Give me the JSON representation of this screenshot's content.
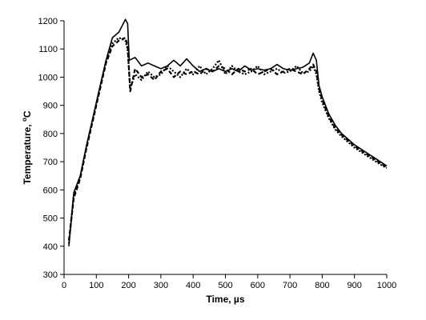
{
  "chart_data": {
    "type": "line",
    "title": "",
    "xlabel": "Time, µs",
    "ylabel_main": "Temperature, ",
    "ylabel_degree": "o",
    "ylabel_unit": "C",
    "xlim": [
      0,
      1000
    ],
    "ylim": [
      300,
      1200
    ],
    "xticks": [
      "0",
      "100",
      "200",
      "300",
      "400",
      "500",
      "600",
      "700",
      "800",
      "900",
      "1000"
    ],
    "yticks": [
      "300",
      "400",
      "500",
      "600",
      "700",
      "800",
      "900",
      "1000",
      "1100",
      "1200"
    ],
    "grid": false,
    "legend": "none",
    "series": [
      {
        "style": "solid",
        "color": "#000000",
        "points": [
          [
            15,
            400
          ],
          [
            30,
            590
          ],
          [
            50,
            650
          ],
          [
            70,
            760
          ],
          [
            90,
            860
          ],
          [
            110,
            960
          ],
          [
            130,
            1060
          ],
          [
            150,
            1140
          ],
          [
            170,
            1160
          ],
          [
            190,
            1205
          ],
          [
            197,
            1190
          ],
          [
            202,
            1060
          ],
          [
            220,
            1070
          ],
          [
            240,
            1040
          ],
          [
            260,
            1050
          ],
          [
            280,
            1040
          ],
          [
            300,
            1030
          ],
          [
            320,
            1040
          ],
          [
            340,
            1060
          ],
          [
            360,
            1040
          ],
          [
            380,
            1065
          ],
          [
            400,
            1040
          ],
          [
            420,
            1020
          ],
          [
            440,
            1030
          ],
          [
            460,
            1020
          ],
          [
            480,
            1030
          ],
          [
            500,
            1020
          ],
          [
            520,
            1030
          ],
          [
            540,
            1020
          ],
          [
            560,
            1040
          ],
          [
            580,
            1025
          ],
          [
            600,
            1030
          ],
          [
            620,
            1025
          ],
          [
            640,
            1030
          ],
          [
            660,
            1045
          ],
          [
            680,
            1030
          ],
          [
            700,
            1025
          ],
          [
            720,
            1030
          ],
          [
            740,
            1035
          ],
          [
            760,
            1050
          ],
          [
            772,
            1085
          ],
          [
            782,
            1060
          ],
          [
            790,
            970
          ],
          [
            800,
            930
          ],
          [
            820,
            870
          ],
          [
            840,
            830
          ],
          [
            860,
            800
          ],
          [
            880,
            780
          ],
          [
            900,
            760
          ],
          [
            920,
            745
          ],
          [
            940,
            730
          ],
          [
            960,
            715
          ],
          [
            980,
            700
          ],
          [
            1000,
            685
          ]
        ]
      },
      {
        "style": "dashed",
        "color": "#000000",
        "points": [
          [
            15,
            420
          ],
          [
            30,
            570
          ],
          [
            50,
            640
          ],
          [
            70,
            750
          ],
          [
            90,
            850
          ],
          [
            110,
            950
          ],
          [
            130,
            1050
          ],
          [
            150,
            1110
          ],
          [
            170,
            1130
          ],
          [
            190,
            1140
          ],
          [
            197,
            1110
          ],
          [
            205,
            950
          ],
          [
            220,
            1030
          ],
          [
            240,
            1000
          ],
          [
            260,
            1010
          ],
          [
            280,
            990
          ],
          [
            300,
            1020
          ],
          [
            320,
            1030
          ],
          [
            340,
            1000
          ],
          [
            360,
            1020
          ],
          [
            380,
            1010
          ],
          [
            400,
            1020
          ],
          [
            420,
            1010
          ],
          [
            440,
            1030
          ],
          [
            460,
            1020
          ],
          [
            480,
            1040
          ],
          [
            500,
            1030
          ],
          [
            520,
            1010
          ],
          [
            540,
            1030
          ],
          [
            560,
            1020
          ],
          [
            580,
            1030
          ],
          [
            600,
            1010
          ],
          [
            620,
            1020
          ],
          [
            640,
            1030
          ],
          [
            660,
            1010
          ],
          [
            680,
            1020
          ],
          [
            700,
            1030
          ],
          [
            720,
            1020
          ],
          [
            740,
            1010
          ],
          [
            760,
            1030
          ],
          [
            772,
            1045
          ],
          [
            782,
            1020
          ],
          [
            790,
            960
          ],
          [
            800,
            920
          ],
          [
            820,
            860
          ],
          [
            840,
            820
          ],
          [
            860,
            795
          ],
          [
            880,
            775
          ],
          [
            900,
            755
          ],
          [
            920,
            740
          ],
          [
            940,
            725
          ],
          [
            960,
            710
          ],
          [
            980,
            695
          ],
          [
            1000,
            680
          ]
        ]
      },
      {
        "style": "dotted",
        "color": "#000000",
        "points": [
          [
            15,
            410
          ],
          [
            30,
            580
          ],
          [
            50,
            645
          ],
          [
            70,
            755
          ],
          [
            90,
            855
          ],
          [
            110,
            955
          ],
          [
            130,
            1055
          ],
          [
            150,
            1120
          ],
          [
            170,
            1140
          ],
          [
            190,
            1130
          ],
          [
            197,
            1100
          ],
          [
            205,
            960
          ],
          [
            220,
            1010
          ],
          [
            240,
            990
          ],
          [
            260,
            1020
          ],
          [
            280,
            1000
          ],
          [
            300,
            1010
          ],
          [
            320,
            1040
          ],
          [
            340,
            1020
          ],
          [
            360,
            1000
          ],
          [
            380,
            1030
          ],
          [
            400,
            1010
          ],
          [
            420,
            1040
          ],
          [
            440,
            1010
          ],
          [
            460,
            1030
          ],
          [
            480,
            1060
          ],
          [
            500,
            1010
          ],
          [
            520,
            1040
          ],
          [
            540,
            1020
          ],
          [
            560,
            1010
          ],
          [
            580,
            1020
          ],
          [
            600,
            1040
          ],
          [
            620,
            1010
          ],
          [
            640,
            1020
          ],
          [
            660,
            1030
          ],
          [
            680,
            1015
          ],
          [
            700,
            1020
          ],
          [
            720,
            1040
          ],
          [
            740,
            1015
          ],
          [
            760,
            1020
          ],
          [
            772,
            1040
          ],
          [
            782,
            1010
          ],
          [
            790,
            950
          ],
          [
            800,
            910
          ],
          [
            820,
            855
          ],
          [
            840,
            815
          ],
          [
            860,
            790
          ],
          [
            880,
            770
          ],
          [
            900,
            750
          ],
          [
            920,
            735
          ],
          [
            940,
            720
          ],
          [
            960,
            705
          ],
          [
            980,
            690
          ],
          [
            1000,
            678
          ]
        ]
      }
    ]
  }
}
